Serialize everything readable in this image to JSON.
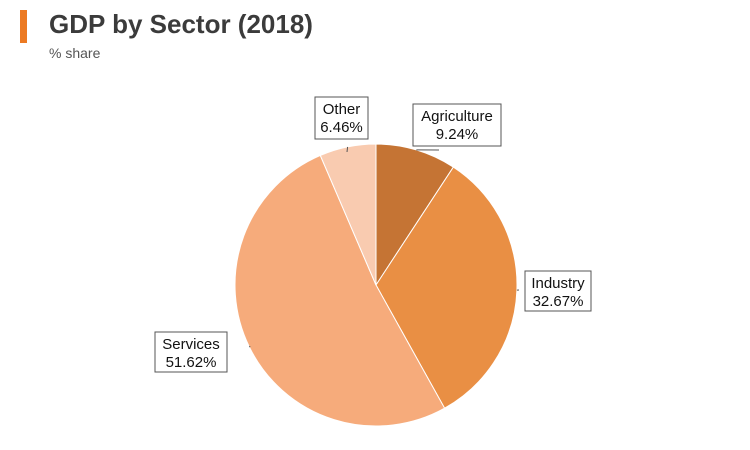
{
  "header": {
    "title": "GDP by Sector (2018)",
    "subtitle": "% share",
    "accent_color": "#ec7a23"
  },
  "chart_data": {
    "type": "pie",
    "title": "GDP by Sector (2018)",
    "subtitle": "% share",
    "start_angle_deg": 0,
    "direction": "clockwise",
    "slices": [
      {
        "label": "Agriculture",
        "value": 9.24,
        "value_label": "9.24%",
        "color": "#c57434"
      },
      {
        "label": "Industry",
        "value": 32.67,
        "value_label": "32.67%",
        "color": "#e98f44"
      },
      {
        "label": "Services",
        "value": 51.62,
        "value_label": "51.62%",
        "color": "#f6ab7b"
      },
      {
        "label": "Other",
        "value": 6.46,
        "value_label": "6.46%",
        "color": "#f9cbb0"
      }
    ]
  }
}
